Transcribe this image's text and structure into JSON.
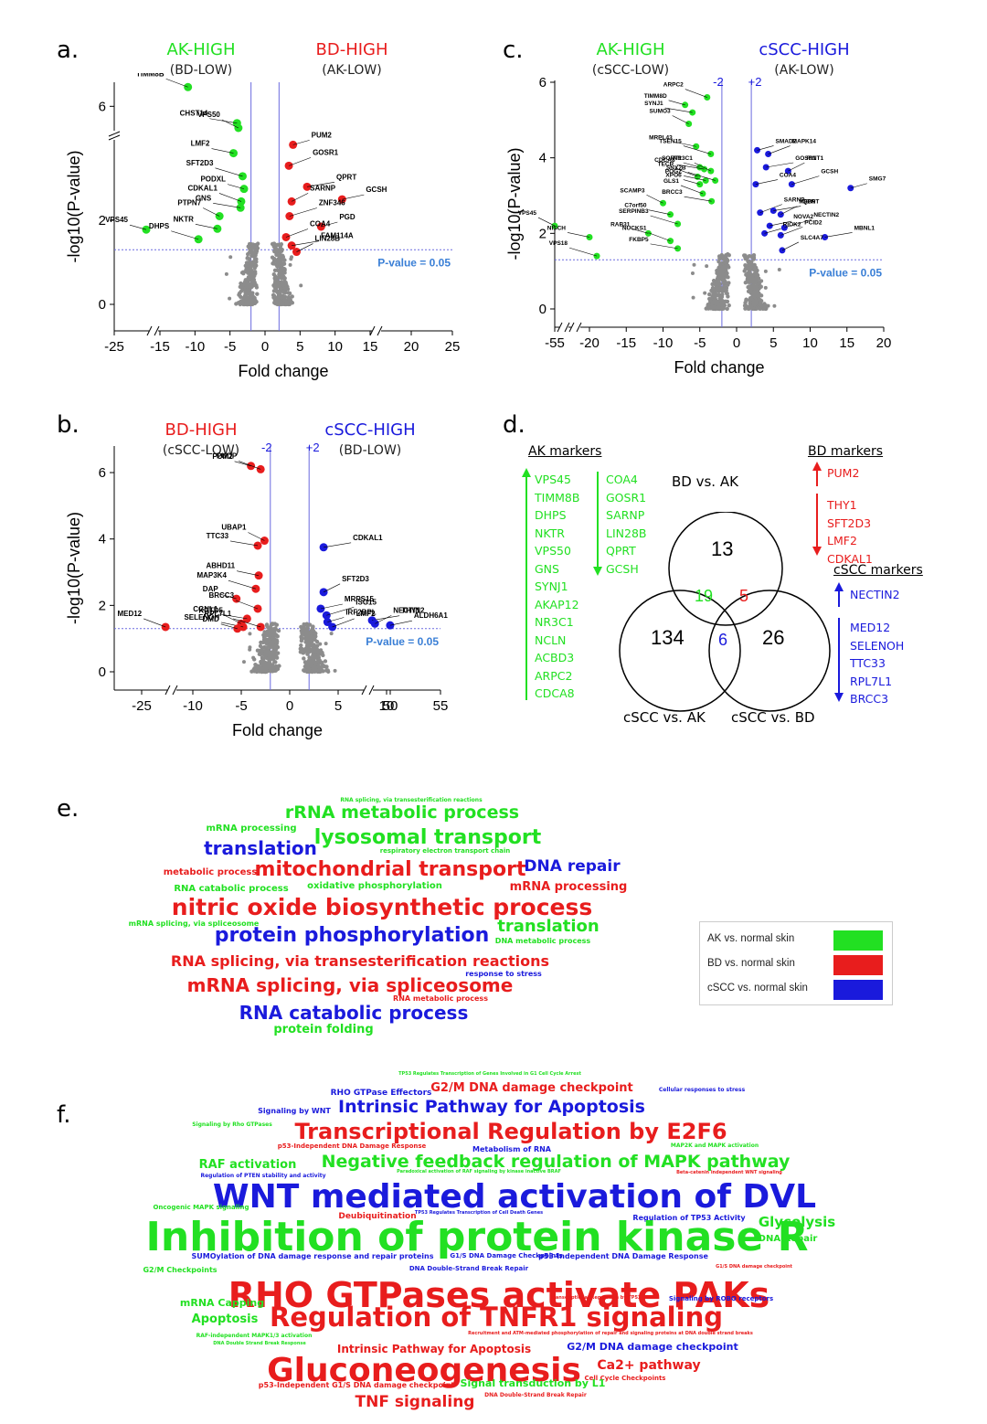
{
  "colors": {
    "green": "#22e022",
    "red": "#e81d1d",
    "blue": "#1a1adc",
    "gray": "#8a8a8a",
    "sig": "#3a7fd6"
  },
  "panels": {
    "a": "a.",
    "b": "b.",
    "c": "c.",
    "d": "d.",
    "e": "e.",
    "f": "f."
  },
  "chart_data": [
    {
      "type": "scatter",
      "panel": "a",
      "headers": {
        "left": "AK-HIGH",
        "left_sub": "(BD-LOW)",
        "right": "BD-HIGH",
        "right_sub": "(AK-LOW)"
      },
      "xlabel": "Fold change",
      "ylabel": "-log10(P-value)",
      "xticks": [
        "-25",
        "-15",
        "-10",
        "-5",
        "0",
        "5",
        "10",
        "15",
        "20",
        "25"
      ],
      "yticks": [
        "0",
        "2",
        "6"
      ],
      "threshold_label": "P-value = 0.05",
      "points": [
        {
          "x": -18,
          "y": 1.78,
          "label": "VPS45",
          "c": "green"
        },
        {
          "x": -11,
          "y": 7.6,
          "label": "TIMM8B",
          "c": "green"
        },
        {
          "x": -4,
          "y": 4.6,
          "label": "CHST14",
          "c": "green"
        },
        {
          "x": -3.8,
          "y": 4.2,
          "label": "VPS50",
          "c": "green"
        },
        {
          "x": -4.5,
          "y": 3.6,
          "label": "LMF2",
          "c": "green"
        },
        {
          "x": -3.2,
          "y": 3.05,
          "label": "SFT2D3",
          "c": "green"
        },
        {
          "x": -3,
          "y": 2.75,
          "label": "PODXL",
          "c": "green"
        },
        {
          "x": -3.4,
          "y": 2.45,
          "label": "CDKAL1",
          "c": "green"
        },
        {
          "x": -3.5,
          "y": 2.3,
          "label": "GNS",
          "c": "green"
        },
        {
          "x": -6.5,
          "y": 2.1,
          "label": "PTPN7",
          "c": "green"
        },
        {
          "x": -6.8,
          "y": 1.8,
          "label": "NKTR",
          "c": "green"
        },
        {
          "x": -9.5,
          "y": 1.55,
          "label": "DHPS",
          "c": "green"
        },
        {
          "x": 4,
          "y": 3.8,
          "label": "PUM2",
          "c": "red"
        },
        {
          "x": 3.4,
          "y": 3.3,
          "label": "GOSR1",
          "c": "red"
        },
        {
          "x": 6,
          "y": 2.8,
          "label": "QPRT",
          "c": "red"
        },
        {
          "x": 3.8,
          "y": 2.45,
          "label": "SARNP",
          "c": "red"
        },
        {
          "x": 11,
          "y": 2.5,
          "label": "GCSH",
          "c": "red"
        },
        {
          "x": 3.5,
          "y": 2.1,
          "label": "ZNF346",
          "c": "red"
        },
        {
          "x": 8,
          "y": 1.85,
          "label": "PGD",
          "c": "red"
        },
        {
          "x": 3,
          "y": 1.6,
          "label": "COA4",
          "c": "red"
        },
        {
          "x": 3.8,
          "y": 1.4,
          "label": "FAM114A",
          "c": "red"
        },
        {
          "x": 4.5,
          "y": 1.25,
          "label": "LIN28B",
          "c": "red"
        }
      ]
    },
    {
      "type": "scatter",
      "panel": "b",
      "headers": {
        "left": "BD-HIGH",
        "left_sub": "(cSCC-LOW)",
        "right": "cSCC-HIGH",
        "right_sub": "(BD-LOW)",
        "neg": "-2",
        "pos": "+2"
      },
      "xlabel": "Fold change",
      "ylabel": "-log10(P-value)",
      "xticks": [
        "-25",
        "-10",
        "-5",
        "0",
        "5",
        "10",
        "50",
        "55"
      ],
      "yticks": [
        "0",
        "2",
        "4",
        "6"
      ],
      "threshold_label": "P-value = 0.05",
      "points": [
        {
          "x": -4,
          "y": 6.2,
          "label": "PUM2",
          "c": "red"
        },
        {
          "x": -3,
          "y": 6.1,
          "label": "PUDP",
          "c": "red"
        },
        {
          "x": -3.3,
          "y": 3.8,
          "label": "TTC33",
          "c": "red"
        },
        {
          "x": -2.6,
          "y": 3.95,
          "label": "UBAP1",
          "c": "red"
        },
        {
          "x": -3.2,
          "y": 2.9,
          "label": "ABHD11",
          "c": "red"
        },
        {
          "x": -3.5,
          "y": 2.5,
          "label": "MAP3K4",
          "c": "red"
        },
        {
          "x": -5.5,
          "y": 2.2,
          "label": "DAP",
          "c": "red"
        },
        {
          "x": -3.3,
          "y": 1.9,
          "label": "BRCC3",
          "c": "red"
        },
        {
          "x": -4.4,
          "y": 1.6,
          "label": "CGNL1",
          "c": "red"
        },
        {
          "x": -5,
          "y": 1.45,
          "label": "KCTD5",
          "c": "red"
        },
        {
          "x": -4.8,
          "y": 1.35,
          "label": "SELENOH",
          "c": "red"
        },
        {
          "x": -3,
          "y": 1.35,
          "label": "RPL7L1",
          "c": "red"
        },
        {
          "x": -5.4,
          "y": 1.3,
          "label": "DMD",
          "c": "red"
        },
        {
          "x": -18,
          "y": 1.35,
          "label": "MED12",
          "c": "red"
        },
        {
          "x": 3.5,
          "y": 3.75,
          "label": "CDKAL1",
          "c": "blue"
        },
        {
          "x": 3.5,
          "y": 2.4,
          "label": "SFT2D3",
          "c": "blue"
        },
        {
          "x": 3.2,
          "y": 1.9,
          "label": "MRPS15",
          "c": "blue"
        },
        {
          "x": 3.8,
          "y": 1.7,
          "label": "ISG15",
          "c": "blue"
        },
        {
          "x": 3.9,
          "y": 1.5,
          "label": "IRF2BPL",
          "c": "blue"
        },
        {
          "x": 4.4,
          "y": 1.35,
          "label": "LMF2",
          "c": "blue"
        },
        {
          "x": 8.5,
          "y": 1.55,
          "label": "THY1",
          "c": "blue"
        },
        {
          "x": 8.8,
          "y": 1.45,
          "label": "NECTIN2",
          "c": "blue"
        },
        {
          "x": 49,
          "y": 1.4,
          "label": "ALDH6A1",
          "c": "blue"
        }
      ]
    },
    {
      "type": "scatter",
      "panel": "c",
      "headers": {
        "left": "AK-HIGH",
        "left_sub": "(cSCC-LOW)",
        "right": "cSCC-HIGH",
        "right_sub": "(AK-LOW)",
        "neg": "-2",
        "pos": "+2"
      },
      "xlabel": "Fold change",
      "ylabel": "-log10(P-value)",
      "xticks": [
        "-55",
        "-20",
        "-15",
        "-10",
        "-5",
        "0",
        "5",
        "10",
        "15",
        "20"
      ],
      "yticks": [
        "0",
        "2",
        "4",
        "6"
      ],
      "threshold_label": "P-value = 0.05",
      "points": [
        {
          "x": -7,
          "y": 5.4,
          "label": "TIMM8D",
          "c": "green"
        },
        {
          "x": -4,
          "y": 5.6,
          "label": "ARPC2",
          "c": "green"
        },
        {
          "x": -6,
          "y": 5.2,
          "label": "SYNJ1",
          "c": "green"
        },
        {
          "x": -6.5,
          "y": 4.9,
          "label": "SUMO3",
          "c": "green"
        },
        {
          "x": -5.5,
          "y": 4.3,
          "label": "MRPL43",
          "c": "green"
        },
        {
          "x": -3.5,
          "y": 4.1,
          "label": "TSEN15",
          "c": "green"
        },
        {
          "x": -5,
          "y": 3.75,
          "label": "SORT1",
          "c": "green"
        },
        {
          "x": -5.3,
          "y": 3.5,
          "label": "TECR",
          "c": "green"
        },
        {
          "x": -4.4,
          "y": 3.7,
          "label": "CDCA8",
          "c": "green"
        },
        {
          "x": -3.5,
          "y": 3.65,
          "label": "NR3C1",
          "c": "green"
        },
        {
          "x": -4.2,
          "y": 3.4,
          "label": "POGZ",
          "c": "green"
        },
        {
          "x": -2.9,
          "y": 3.4,
          "label": "SNX2B",
          "c": "green"
        },
        {
          "x": -5,
          "y": 3.3,
          "label": "XPO6",
          "c": "green"
        },
        {
          "x": -4.6,
          "y": 3.05,
          "label": "GLS1",
          "c": "green"
        },
        {
          "x": -3.4,
          "y": 2.85,
          "label": "BRCC3",
          "c": "green"
        },
        {
          "x": -10,
          "y": 2.8,
          "label": "SCAMP3",
          "c": "green"
        },
        {
          "x": -9,
          "y": 2.5,
          "label": "C7orf50",
          "c": "green"
        },
        {
          "x": -8,
          "y": 2.25,
          "label": "SERPINB3",
          "c": "green"
        },
        {
          "x": -12,
          "y": 2.0,
          "label": "RAB31",
          "c": "green"
        },
        {
          "x": -9,
          "y": 1.8,
          "label": "NUCKS1",
          "c": "green"
        },
        {
          "x": -8,
          "y": 1.6,
          "label": "FKBP5",
          "c": "green"
        },
        {
          "x": -55,
          "y": 2.2,
          "label": "VPS45",
          "c": "green"
        },
        {
          "x": -20,
          "y": 1.9,
          "label": "NISCH",
          "c": "green"
        },
        {
          "x": -19,
          "y": 1.4,
          "label": "VPS18",
          "c": "green"
        },
        {
          "x": 2.8,
          "y": 4.2,
          "label": "SMAD2",
          "c": "blue"
        },
        {
          "x": 4.3,
          "y": 4.1,
          "label": "MAPK14",
          "c": "blue"
        },
        {
          "x": 4,
          "y": 3.75,
          "label": "GOSR1",
          "c": "blue"
        },
        {
          "x": 7,
          "y": 3.65,
          "label": "RINT1",
          "c": "blue"
        },
        {
          "x": 2.6,
          "y": 3.3,
          "label": "COA4",
          "c": "blue"
        },
        {
          "x": 7.5,
          "y": 3.3,
          "label": "GCSH",
          "c": "blue"
        },
        {
          "x": 15.5,
          "y": 3.2,
          "label": "SMG7",
          "c": "blue"
        },
        {
          "x": 3.2,
          "y": 2.55,
          "label": "SARNP",
          "c": "blue"
        },
        {
          "x": 5,
          "y": 2.6,
          "label": "QPRT",
          "c": "blue"
        },
        {
          "x": 6,
          "y": 2.5,
          "label": "MED9",
          "c": "blue"
        },
        {
          "x": 4.5,
          "y": 2.2,
          "label": "NOVA2",
          "c": "blue"
        },
        {
          "x": 6.5,
          "y": 2.15,
          "label": "NECTIN2",
          "c": "blue"
        },
        {
          "x": 3.8,
          "y": 2.0,
          "label": "RIOK2",
          "c": "blue"
        },
        {
          "x": 6,
          "y": 1.95,
          "label": "PCID2",
          "c": "blue"
        },
        {
          "x": 12,
          "y": 1.9,
          "label": "MBNL1",
          "c": "blue"
        },
        {
          "x": 6.2,
          "y": 1.55,
          "label": "SLC4A7",
          "c": "blue"
        }
      ]
    }
  ],
  "venn": {
    "set_labels": [
      "BD vs. AK",
      "cSCC vs. AK",
      "cSCC vs. BD"
    ],
    "regions": {
      "bd_ak_only": "13",
      "csccak_only": "134",
      "csccbd_only": "26",
      "bdak_csccak": "19",
      "bdak_csccbd": "5",
      "csccak_csccbd": "6"
    },
    "ak_title": "AK markers",
    "ak_up": [
      "VPS45",
      "TIMM8B",
      "DHPS",
      "NKTR",
      "VPS50",
      "GNS",
      "SYNJ1",
      "AKAP12",
      "NR3C1",
      "NCLN",
      "ACBD3",
      "ARPC2",
      "CDCA8"
    ],
    "ak_down": [
      "COA4",
      "GOSR1",
      "SARNP",
      "LIN28B",
      "QPRT",
      "GCSH"
    ],
    "bd_title": "BD markers",
    "bd_up": [
      "PUM2"
    ],
    "bd_down": [
      "THY1",
      "SFT2D3",
      "LMF2",
      "CDKAL1"
    ],
    "cscc_title": "cSCC markers",
    "cscc_up": [
      "NECTIN2"
    ],
    "cscc_down": [
      "MED12",
      "SELENOH",
      "TTC33",
      "RPL7L1",
      "BRCC3"
    ]
  },
  "wordcloud_e": [
    {
      "t": "RNA splicing, via transesterification reactions",
      "c": "green",
      "s": 6
    },
    {
      "t": "rRNA metabolic process",
      "c": "green",
      "s": 19
    },
    {
      "t": "mRNA processing",
      "c": "green",
      "s": 10
    },
    {
      "t": "lysosomal transport",
      "c": "green",
      "s": 22
    },
    {
      "t": "translation",
      "c": "blue",
      "s": 20
    },
    {
      "t": "respiratory electron transport chain",
      "c": "green",
      "s": 7
    },
    {
      "t": "metabolic process",
      "c": "red",
      "s": 10
    },
    {
      "t": "mitochondrial transport",
      "c": "red",
      "s": 22
    },
    {
      "t": "DNA repair",
      "c": "blue",
      "s": 17
    },
    {
      "t": "RNA catabolic process",
      "c": "green",
      "s": 10
    },
    {
      "t": "oxidative phosphorylation",
      "c": "green",
      "s": 10
    },
    {
      "t": "mRNA processing",
      "c": "red",
      "s": 13
    },
    {
      "t": "nitric oxide biosynthetic process",
      "c": "red",
      "s": 25
    },
    {
      "t": "mRNA splicing, via spliceosome",
      "c": "green",
      "s": 8
    },
    {
      "t": "translation",
      "c": "green",
      "s": 18
    },
    {
      "t": "protein phosphorylation",
      "c": "blue",
      "s": 22
    },
    {
      "t": "DNA metabolic process",
      "c": "green",
      "s": 8
    },
    {
      "t": "RNA splicing, via transesterification reactions",
      "c": "red",
      "s": 16
    },
    {
      "t": "response to stress",
      "c": "blue",
      "s": 8
    },
    {
      "t": "mRNA splicing, via spliceosome",
      "c": "red",
      "s": 20
    },
    {
      "t": "RNA metabolic process",
      "c": "red",
      "s": 8
    },
    {
      "t": "RNA catabolic process",
      "c": "blue",
      "s": 20
    },
    {
      "t": "protein folding",
      "c": "green",
      "s": 13
    }
  ],
  "legend_e": [
    {
      "label": "AK vs. normal skin",
      "c": "green"
    },
    {
      "label": "BD vs. normal skin",
      "c": "red"
    },
    {
      "label": "cSCC vs. normal skin",
      "c": "blue"
    }
  ],
  "wordcloud_f": [
    {
      "t": "TP53 Regulates Transcription of Genes Involved in G1 Cell Cycle Arrest",
      "c": "green",
      "s": 5
    },
    {
      "t": "RHO GTPase Effectors",
      "c": "blue",
      "s": 9
    },
    {
      "t": "G2/M DNA damage checkpoint",
      "c": "red",
      "s": 13
    },
    {
      "t": "Intrinsic Pathway for Apoptosis",
      "c": "blue",
      "s": 19
    },
    {
      "t": "Cellular responses to stress",
      "c": "blue",
      "s": 6
    },
    {
      "t": "Signaling by WNT",
      "c": "blue",
      "s": 8
    },
    {
      "t": "Transcriptional Regulation by E2F6",
      "c": "red",
      "s": 24
    },
    {
      "t": "Signaling by Rho GTPases",
      "c": "green",
      "s": 6
    },
    {
      "t": "p53-Independent DNA Damage Response",
      "c": "red",
      "s": 7
    },
    {
      "t": "Metabolism of RNA",
      "c": "blue",
      "s": 8
    },
    {
      "t": "MAP2K and MAPK activation",
      "c": "green",
      "s": 6
    },
    {
      "t": "RAF activation",
      "c": "green",
      "s": 13
    },
    {
      "t": "Negative feedback regulation of MAPK pathway",
      "c": "green",
      "s": 19
    },
    {
      "t": "Regulation of PTEN stability and activity",
      "c": "blue",
      "s": 6
    },
    {
      "t": "Paradoxical activation of RAF signaling by kinase inactive BRAF",
      "c": "green",
      "s": 5
    },
    {
      "t": "Beta-catenin independent WNT signaling",
      "c": "red",
      "s": 5
    },
    {
      "t": "WNT mediated activation of DVL",
      "c": "blue",
      "s": 36
    },
    {
      "t": "Oncogenic MAPK signaling",
      "c": "green",
      "s": 7
    },
    {
      "t": "Deubiquitination",
      "c": "red",
      "s": 9
    },
    {
      "t": "TP53 Regulates Transcription of Cell Death Genes",
      "c": "blue",
      "s": 5
    },
    {
      "t": "Regulation of TP53 Activity",
      "c": "blue",
      "s": 8
    },
    {
      "t": "Glycolysis",
      "c": "green",
      "s": 15
    },
    {
      "t": "Inhibition of protein kinase R",
      "c": "green",
      "s": 44
    },
    {
      "t": "DNA Repair",
      "c": "green",
      "s": 10
    },
    {
      "t": "SUMOylation of DNA damage response and repair proteins",
      "c": "blue",
      "s": 8
    },
    {
      "t": "G1/S DNA Damage Checkpoints",
      "c": "blue",
      "s": 7
    },
    {
      "t": "p53-Independent DNA Damage Response",
      "c": "blue",
      "s": 8
    },
    {
      "t": "G2/M Checkpoints",
      "c": "green",
      "s": 8
    },
    {
      "t": "DNA Double-Strand Break Repair",
      "c": "blue",
      "s": 7
    },
    {
      "t": "G1/S DNA damage checkpoint",
      "c": "red",
      "s": 5
    },
    {
      "t": "RHO GTPases activate PAKs",
      "c": "red",
      "s": 38
    },
    {
      "t": "mRNA Capping",
      "c": "green",
      "s": 11
    },
    {
      "t": "Transcriptional Regulation by TP53",
      "c": "red",
      "s": 5
    },
    {
      "t": "Signaling by ROBO receptors",
      "c": "blue",
      "s": 7
    },
    {
      "t": "Apoptosis",
      "c": "green",
      "s": 13
    },
    {
      "t": "Regulation of TNFR1 signaling",
      "c": "red",
      "s": 29
    },
    {
      "t": "RAF-independent MAPK1/3 activation",
      "c": "green",
      "s": 6
    },
    {
      "t": "Recruitment and ATM-mediated phosphorylation of repair and signaling proteins at DNA double strand breaks",
      "c": "red",
      "s": 5
    },
    {
      "t": "DNA Double Strand Break Response",
      "c": "green",
      "s": 5
    },
    {
      "t": "Intrinsic Pathway for Apoptosis",
      "c": "red",
      "s": 12
    },
    {
      "t": "G2/M DNA damage checkpoint",
      "c": "blue",
      "s": 11
    },
    {
      "t": "Gluconeogenesis",
      "c": "red",
      "s": 36
    },
    {
      "t": "Ca2+ pathway",
      "c": "red",
      "s": 14
    },
    {
      "t": "Cell Cycle Checkpoints",
      "c": "red",
      "s": 7
    },
    {
      "t": "p53-Independent G1/S DNA damage checkpoint",
      "c": "red",
      "s": 8
    },
    {
      "t": "Signal transduction by L1",
      "c": "green",
      "s": 11
    },
    {
      "t": "TNF signaling",
      "c": "red",
      "s": 17
    },
    {
      "t": "DNA Double-Strand Break Repair",
      "c": "red",
      "s": 6
    }
  ]
}
